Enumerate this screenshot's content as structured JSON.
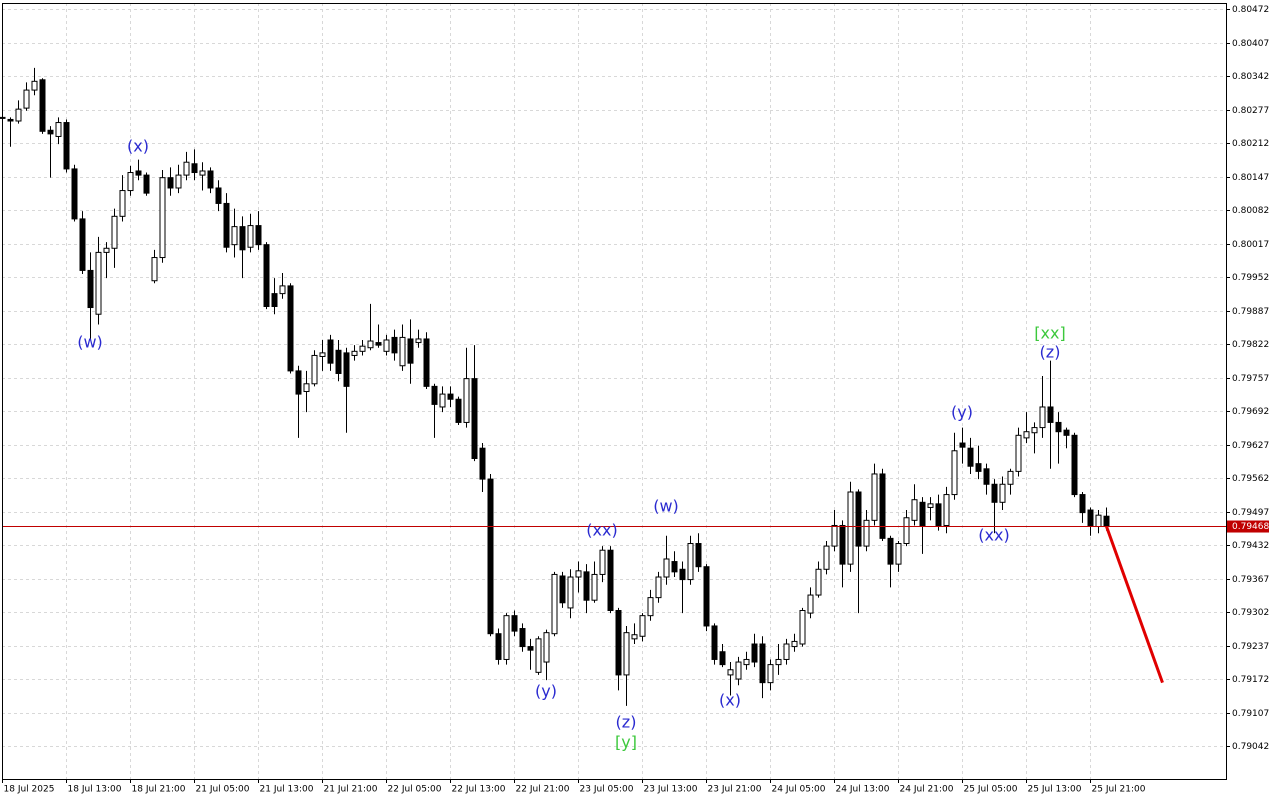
{
  "chart_data": {
    "type": "candlestick",
    "grid": true,
    "up_color": "#ffffff",
    "down_color": "#000000",
    "wick_color": "#000000",
    "last_price": 0.79468,
    "last_price_color": "#c00000",
    "forecast": {
      "color": "#e00000",
      "values": [
        0.79468,
        0.79165
      ]
    },
    "ylim": [
      0.78978,
      0.80484
    ],
    "yticks": [
      0.80472,
      0.80407,
      0.80342,
      0.80277,
      0.80212,
      0.80147,
      0.80082,
      0.80017,
      0.79952,
      0.79887,
      0.79822,
      0.79757,
      0.79692,
      0.79627,
      0.79562,
      0.79497,
      0.79432,
      0.79367,
      0.79302,
      0.79237,
      0.79172,
      0.79107,
      0.79042
    ],
    "categories": [
      "18 Jul 2025",
      null,
      null,
      null,
      null,
      null,
      null,
      null,
      "18 Jul 13:00",
      null,
      null,
      null,
      null,
      null,
      null,
      null,
      "18 Jul 21:00",
      null,
      null,
      null,
      null,
      null,
      null,
      null,
      "21 Jul 05:00",
      null,
      null,
      null,
      null,
      null,
      null,
      null,
      "21 Jul 13:00",
      null,
      null,
      null,
      null,
      null,
      null,
      null,
      "21 Jul 21:00",
      null,
      null,
      null,
      null,
      null,
      null,
      null,
      "22 Jul 05:00",
      null,
      null,
      null,
      null,
      null,
      null,
      null,
      "22 Jul 13:00",
      null,
      null,
      null,
      null,
      null,
      null,
      null,
      "22 Jul 21:00",
      null,
      null,
      null,
      null,
      null,
      null,
      null,
      "23 Jul 05:00",
      null,
      null,
      null,
      null,
      null,
      null,
      null,
      "23 Jul 13:00",
      null,
      null,
      null,
      null,
      null,
      null,
      null,
      "23 Jul 21:00",
      null,
      null,
      null,
      null,
      null,
      null,
      null,
      "24 Jul 05:00",
      null,
      null,
      null,
      null,
      null,
      null,
      null,
      "24 Jul 13:00",
      null,
      null,
      null,
      null,
      null,
      null,
      null,
      "24 Jul 21:00",
      null,
      null,
      null,
      null,
      null,
      null,
      null,
      "25 Jul 05:00",
      null,
      null,
      null,
      null,
      null,
      null,
      null,
      "25 Jul 13:00",
      null,
      null,
      null,
      null,
      null,
      null,
      null,
      "25 Jul 21:00",
      null,
      null
    ],
    "open": [
      0.8026,
      0.80258,
      0.80255,
      0.8028,
      0.80315,
      0.80335,
      0.80237,
      0.80225,
      0.80252,
      0.80162,
      0.80065,
      0.79965,
      0.7988,
      0.8,
      0.80008,
      0.8007,
      0.8012,
      0.80158,
      0.8015,
      0.79945,
      0.7999,
      0.80145,
      0.80125,
      0.8015,
      0.80172,
      0.8015,
      0.80158,
      0.80125,
      0.80095,
      0.80015,
      0.8005,
      0.8001,
      0.80052,
      0.80015,
      0.7992,
      0.7992,
      0.79935,
      0.7977,
      0.7973,
      0.79745,
      0.79798,
      0.7983,
      0.7981,
      0.79805,
      0.798,
      0.79808,
      0.79815,
      0.79825,
      0.79808,
      0.79835,
      0.7978,
      0.79832,
      0.79825,
      0.79832,
      0.7974,
      0.797,
      0.79725,
      0.79715,
      0.7967,
      0.79755,
      0.7962,
      0.7956,
      0.7926,
      0.7921,
      0.79295,
      0.7927,
      0.79235,
      0.79185,
      0.79205,
      0.7926,
      0.79372,
      0.7931,
      0.7937,
      0.7938,
      0.79325,
      0.79375,
      0.79422,
      0.79305,
      0.7918,
      0.7925,
      0.79255,
      0.79295,
      0.7933,
      0.7937,
      0.794,
      0.79385,
      0.79365,
      0.79435,
      0.7939,
      0.79275,
      0.79225,
      0.7918,
      0.79172,
      0.792,
      0.7924,
      0.7924,
      0.79165,
      0.792,
      0.7921,
      0.79235,
      0.7924,
      0.793,
      0.79335,
      0.79385,
      0.7943,
      0.7947,
      0.79395,
      0.79535,
      0.7943,
      0.7948,
      0.7957,
      0.79445,
      0.79395,
      0.79435,
      0.7948,
      0.79515,
      0.79505,
      0.79512,
      0.7947,
      0.7953,
      0.7963,
      0.7962,
      0.7959,
      0.7958,
      0.7955,
      0.79515,
      0.7955,
      0.79575,
      0.7964,
      0.7965,
      0.7966,
      0.797,
      0.7967,
      0.79655,
      0.79645,
      0.7953,
      0.795,
      0.79468,
      0.79488
    ],
    "high": [
      0.80265,
      0.80262,
      0.80295,
      0.8033,
      0.80358,
      0.80338,
      0.80245,
      0.80262,
      0.80258,
      0.8017,
      0.8008,
      0.8,
      0.8003,
      0.8002,
      0.80085,
      0.8015,
      0.80168,
      0.8018,
      0.80155,
      0.80005,
      0.8016,
      0.80165,
      0.8017,
      0.80195,
      0.802,
      0.80175,
      0.80165,
      0.8014,
      0.80115,
      0.80085,
      0.8007,
      0.80075,
      0.8008,
      0.8002,
      0.7995,
      0.7996,
      0.7994,
      0.7978,
      0.7977,
      0.7981,
      0.7983,
      0.7984,
      0.7983,
      0.79815,
      0.7982,
      0.7983,
      0.799,
      0.7986,
      0.7984,
      0.7985,
      0.7986,
      0.7987,
      0.7985,
      0.79845,
      0.79745,
      0.7974,
      0.7974,
      0.7972,
      0.79815,
      0.7982,
      0.7963,
      0.7957,
      0.7927,
      0.793,
      0.79305,
      0.7928,
      0.7925,
      0.79255,
      0.79268,
      0.7938,
      0.7938,
      0.79385,
      0.794,
      0.79395,
      0.794,
      0.7943,
      0.7943,
      0.7931,
      0.79275,
      0.7928,
      0.793,
      0.79345,
      0.7938,
      0.7945,
      0.7942,
      0.794,
      0.7945,
      0.79455,
      0.79395,
      0.7928,
      0.7924,
      0.79205,
      0.79215,
      0.79225,
      0.7926,
      0.79255,
      0.7921,
      0.7924,
      0.7925,
      0.7926,
      0.7931,
      0.7935,
      0.794,
      0.7944,
      0.795,
      0.7948,
      0.79555,
      0.7954,
      0.795,
      0.7959,
      0.7958,
      0.7945,
      0.7944,
      0.795,
      0.7955,
      0.79525,
      0.79525,
      0.7953,
      0.79545,
      0.7965,
      0.7966,
      0.7964,
      0.79625,
      0.7959,
      0.7956,
      0.79565,
      0.7958,
      0.7966,
      0.7969,
      0.7967,
      0.7976,
      0.7979,
      0.7969,
      0.7966,
      0.7965,
      0.79535,
      0.79505,
      0.795,
      0.79505
    ],
    "low": [
      0.80258,
      0.80205,
      0.8025,
      0.80275,
      0.80305,
      0.8023,
      0.80145,
      0.8021,
      0.80155,
      0.8006,
      0.79958,
      0.7983,
      0.7986,
      0.7995,
      0.7997,
      0.8006,
      0.8011,
      0.8014,
      0.8011,
      0.7994,
      0.7998,
      0.8011,
      0.80115,
      0.8014,
      0.8014,
      0.8012,
      0.80115,
      0.8008,
      0.8,
      0.7999,
      0.7995,
      0.8,
      0.80005,
      0.7989,
      0.7988,
      0.7991,
      0.79765,
      0.7964,
      0.7969,
      0.7974,
      0.7977,
      0.7977,
      0.7975,
      0.7965,
      0.7979,
      0.798,
      0.7981,
      0.79815,
      0.798,
      0.7979,
      0.7977,
      0.79745,
      0.79815,
      0.79735,
      0.7964,
      0.7969,
      0.797,
      0.79665,
      0.7966,
      0.79595,
      0.79535,
      0.79255,
      0.792,
      0.792,
      0.79255,
      0.79225,
      0.7919,
      0.7918,
      0.7917,
      0.79255,
      0.7931,
      0.7929,
      0.7934,
      0.793,
      0.7932,
      0.7936,
      0.793,
      0.7915,
      0.7912,
      0.7924,
      0.79245,
      0.79285,
      0.7932,
      0.79355,
      0.7937,
      0.793,
      0.79355,
      0.7938,
      0.79265,
      0.792,
      0.79195,
      0.7914,
      0.7916,
      0.7919,
      0.79195,
      0.79135,
      0.7915,
      0.7918,
      0.792,
      0.79225,
      0.79235,
      0.7929,
      0.7933,
      0.79375,
      0.7942,
      0.7935,
      0.7938,
      0.793,
      0.7942,
      0.7947,
      0.7944,
      0.7935,
      0.7938,
      0.7943,
      0.7947,
      0.79415,
      0.7948,
      0.7946,
      0.79455,
      0.7952,
      0.7959,
      0.7957,
      0.7956,
      0.7953,
      0.79455,
      0.795,
      0.7953,
      0.79565,
      0.7963,
      0.7961,
      0.7964,
      0.7958,
      0.7959,
      0.7962,
      0.79525,
      0.79475,
      0.7945,
      0.79455,
      0.7946
    ],
    "close": [
      0.80262,
      0.80255,
      0.80278,
      0.80315,
      0.80332,
      0.80235,
      0.8023,
      0.80252,
      0.80162,
      0.80065,
      0.79965,
      0.79893,
      0.8,
      0.80008,
      0.8007,
      0.8012,
      0.80155,
      0.8015,
      0.80115,
      0.7999,
      0.80145,
      0.80125,
      0.8015,
      0.80175,
      0.80155,
      0.80158,
      0.80125,
      0.80095,
      0.8001,
      0.8005,
      0.80005,
      0.80052,
      0.80015,
      0.79895,
      0.79895,
      0.79935,
      0.7977,
      0.79725,
      0.79745,
      0.798,
      0.79805,
      0.79785,
      0.79765,
      0.7974,
      0.79808,
      0.79818,
      0.79828,
      0.7982,
      0.7983,
      0.79805,
      0.79835,
      0.79785,
      0.79832,
      0.7974,
      0.79705,
      0.79725,
      0.79715,
      0.7967,
      0.79755,
      0.796,
      0.7956,
      0.7926,
      0.7921,
      0.79295,
      0.79265,
      0.79235,
      0.79228,
      0.7925,
      0.79262,
      0.79375,
      0.7932,
      0.7937,
      0.79382,
      0.79325,
      0.79375,
      0.79422,
      0.79305,
      0.7918,
      0.79262,
      0.79258,
      0.79295,
      0.7933,
      0.7937,
      0.79405,
      0.7938,
      0.79365,
      0.79435,
      0.7939,
      0.79275,
      0.7921,
      0.792,
      0.7919,
      0.79205,
      0.7921,
      0.79205,
      0.79165,
      0.792,
      0.7921,
      0.7924,
      0.79245,
      0.79305,
      0.79335,
      0.79385,
      0.7943,
      0.7947,
      0.79395,
      0.79535,
      0.7943,
      0.7948,
      0.7957,
      0.79445,
      0.79395,
      0.79435,
      0.79485,
      0.7952,
      0.7947,
      0.79512,
      0.7947,
      0.7953,
      0.79615,
      0.79622,
      0.79585,
      0.79575,
      0.7955,
      0.79515,
      0.7955,
      0.79575,
      0.79645,
      0.79652,
      0.7966,
      0.797,
      0.7967,
      0.79652,
      0.79645,
      0.7953,
      0.79495,
      0.7947,
      0.7949,
      0.79468
    ],
    "annotations": [
      {
        "text": "(w)",
        "color": "#2a2ad0"
      },
      {
        "text": "(x)",
        "color": "#2a2ad0"
      },
      {
        "text": "(xx)",
        "color": "#2a2ad0"
      },
      {
        "text": "(w)",
        "color": "#2a2ad0"
      },
      {
        "text": "(y)",
        "color": "#2a2ad0"
      },
      {
        "text": "(z)",
        "color": "#2a2ad0"
      },
      {
        "text": "[y]",
        "color": "#3cc83c"
      },
      {
        "text": "(x)",
        "color": "#2a2ad0"
      },
      {
        "text": "(y)",
        "color": "#2a2ad0"
      },
      {
        "text": "(xx)",
        "color": "#2a2ad0"
      },
      {
        "text": "(z)",
        "color": "#2a2ad0"
      },
      {
        "text": "[xx]",
        "color": "#3cc83c"
      }
    ]
  }
}
